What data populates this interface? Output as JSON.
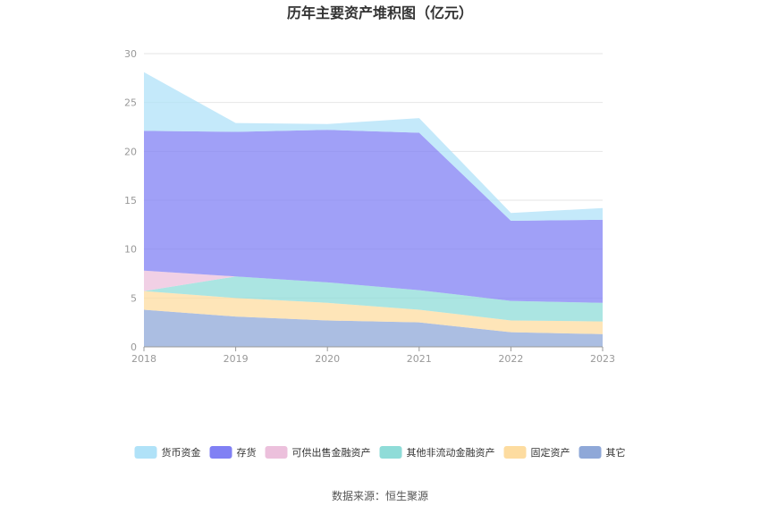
{
  "chart_data": {
    "type": "area",
    "stacked": true,
    "title": "历年主要资产堆积图（亿元）",
    "xlabel": "",
    "ylabel": "",
    "categories": [
      "2018",
      "2019",
      "2020",
      "2021",
      "2022",
      "2023"
    ],
    "ylim": [
      0,
      30
    ],
    "yticks": [
      0,
      5,
      10,
      15,
      20,
      25,
      30
    ],
    "grid": true,
    "legend_position": "bottom",
    "series": [
      {
        "name": "其它",
        "color": "#8fa8d8",
        "values": [
          3.8,
          3.1,
          2.7,
          2.5,
          1.5,
          1.3
        ]
      },
      {
        "name": "固定资产",
        "color": "#fddca0",
        "values": [
          1.9,
          1.9,
          1.8,
          1.3,
          1.2,
          1.3
        ]
      },
      {
        "name": "其他非流动金融资产",
        "color": "#8fdcd8",
        "values": [
          0.0,
          2.2,
          2.1,
          2.0,
          2.0,
          1.9
        ]
      },
      {
        "name": "可供出售金融资产",
        "color": "#ecc0dc",
        "values": [
          2.1,
          0.0,
          0.0,
          0.0,
          0.0,
          0.0
        ]
      },
      {
        "name": "存货",
        "color": "#8080f4",
        "values": [
          14.3,
          14.8,
          15.6,
          16.1,
          8.2,
          8.5
        ]
      },
      {
        "name": "货币资金",
        "color": "#b0e2f8",
        "values": [
          6.0,
          0.9,
          0.6,
          1.5,
          0.8,
          1.2
        ]
      }
    ],
    "legend_order": [
      "货币资金",
      "存货",
      "可供出售金融资产",
      "其他非流动金融资产",
      "固定资产",
      "其它"
    ]
  },
  "source": "数据来源：恒生聚源"
}
